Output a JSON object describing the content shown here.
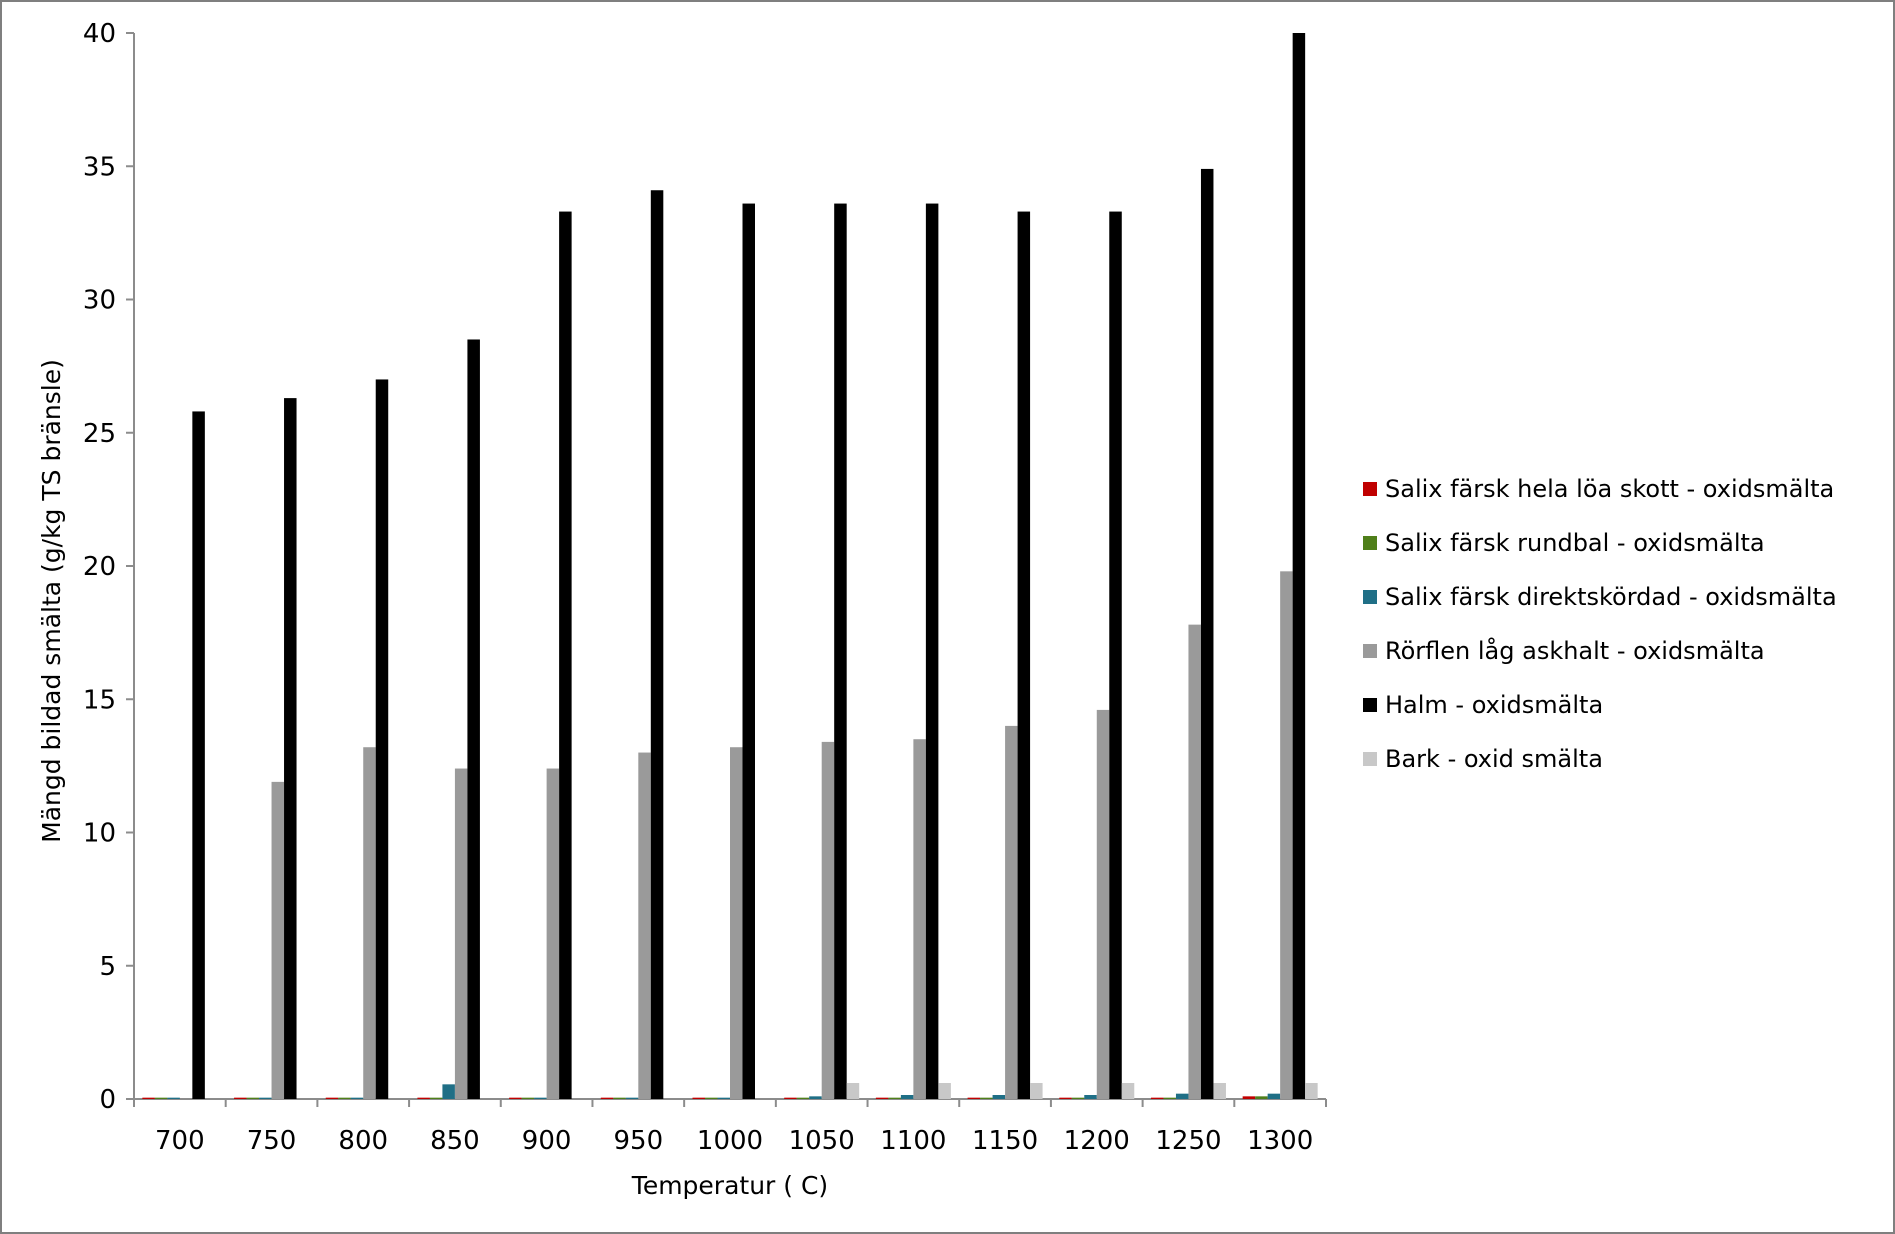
{
  "chart_data": {
    "type": "bar",
    "xlabel": "Temperatur ( C)",
    "ylabel": "Mängd bildad smälta (g/kg TS bränsle)",
    "ylim": [
      0,
      40
    ],
    "yticks": [
      0,
      5,
      10,
      15,
      20,
      25,
      30,
      35,
      40
    ],
    "grid": false,
    "legend_position": "right",
    "categories": [
      "700",
      "750",
      "800",
      "850",
      "900",
      "950",
      "1000",
      "1050",
      "1100",
      "1150",
      "1200",
      "1250",
      "1300"
    ],
    "series": [
      {
        "name": "Salix färsk hela löa skott - oxidsmälta",
        "color": "#c00000",
        "values": [
          0.05,
          0.05,
          0.05,
          0.05,
          0.05,
          0.05,
          0.05,
          0.05,
          0.05,
          0.05,
          0.05,
          0.05,
          0.1
        ]
      },
      {
        "name": "Salix färsk rundbal - oxidsmälta",
        "color": "#4f7f1a",
        "values": [
          0.05,
          0.05,
          0.05,
          0.05,
          0.05,
          0.05,
          0.05,
          0.05,
          0.05,
          0.05,
          0.05,
          0.05,
          0.1
        ]
      },
      {
        "name": "Salix färsk direktskördad - oxidsmälta",
        "color": "#1f6f86",
        "values": [
          0.05,
          0.05,
          0.05,
          0.55,
          0.05,
          0.05,
          0.05,
          0.1,
          0.15,
          0.15,
          0.15,
          0.2,
          0.2
        ]
      },
      {
        "name": "Rörflen låg askhalt - oxidsmälta",
        "color": "#9a9a9a",
        "values": [
          0,
          11.9,
          13.2,
          12.4,
          12.4,
          13.0,
          13.2,
          13.4,
          13.5,
          14.0,
          14.6,
          17.8,
          19.8
        ]
      },
      {
        "name": "Halm - oxidsmälta",
        "color": "#000000",
        "values": [
          25.8,
          26.3,
          27.0,
          28.5,
          33.3,
          34.1,
          33.6,
          33.6,
          33.6,
          33.3,
          33.3,
          34.9,
          40.0
        ]
      },
      {
        "name": "Bark - oxid smälta",
        "color": "#c8c8c8",
        "values": [
          0,
          0,
          0,
          0,
          0,
          0,
          0,
          0.6,
          0.6,
          0.6,
          0.6,
          0.6,
          0.6
        ]
      }
    ]
  }
}
